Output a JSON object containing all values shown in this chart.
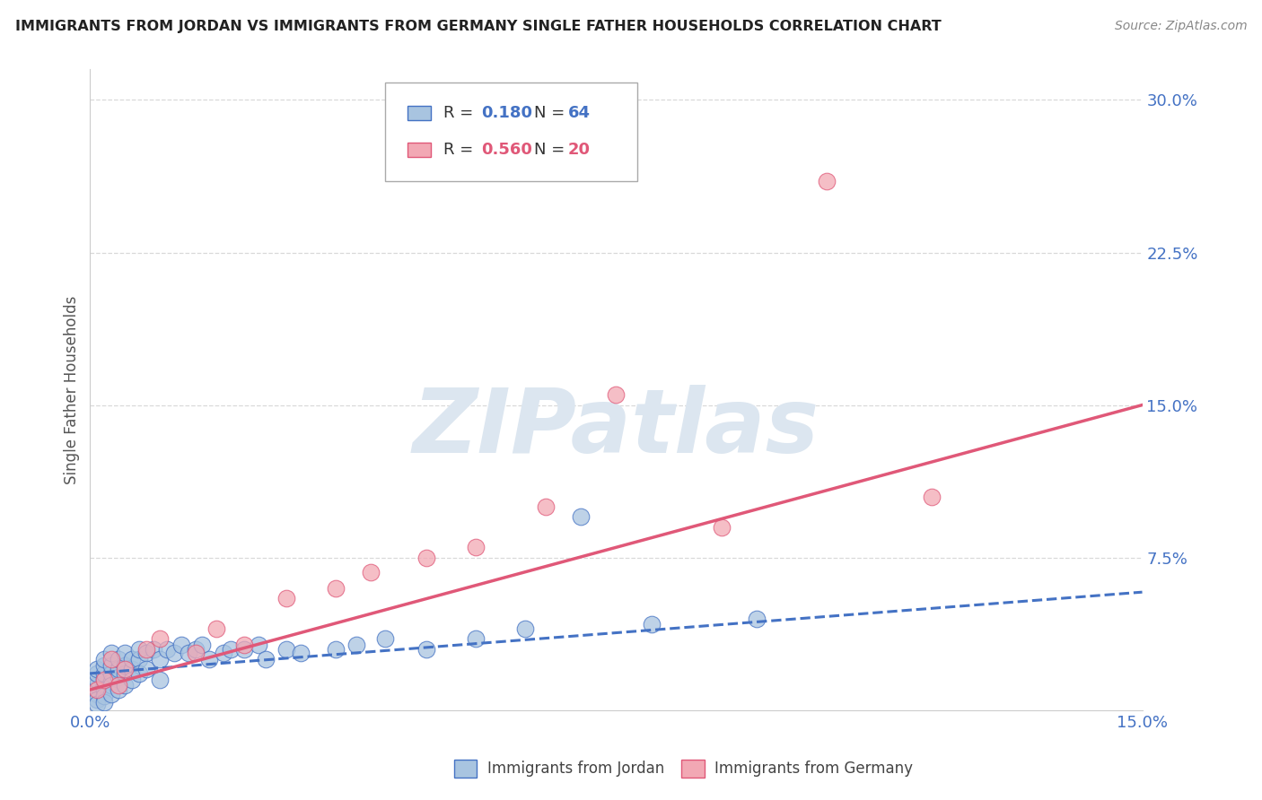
{
  "title": "IMMIGRANTS FROM JORDAN VS IMMIGRANTS FROM GERMANY SINGLE FATHER HOUSEHOLDS CORRELATION CHART",
  "source": "Source: ZipAtlas.com",
  "ylabel": "Single Father Households",
  "x_min": 0.0,
  "x_max": 0.15,
  "y_min": 0.0,
  "y_max": 0.315,
  "ytick_vals": [
    0.075,
    0.15,
    0.225,
    0.3
  ],
  "ytick_labels": [
    "7.5%",
    "15.0%",
    "22.5%",
    "30.0%"
  ],
  "xtick_vals": [
    0.0,
    0.15
  ],
  "xtick_labels": [
    "0.0%",
    "15.0%"
  ],
  "jordan_color": "#a8c4e0",
  "germany_color": "#f2a8b4",
  "jordan_R": 0.18,
  "jordan_N": 64,
  "germany_R": 0.56,
  "germany_N": 20,
  "jordan_label": "Immigrants from Jordan",
  "germany_label": "Immigrants from Germany",
  "jordan_line_color": "#4472c4",
  "germany_line_color": "#e05878",
  "r_n_color_jordan": "#4472c4",
  "r_n_color_germany": "#e05878",
  "watermark": "ZIPatlas",
  "watermark_color": "#dce6f0",
  "background_color": "#ffffff",
  "grid_color": "#d0d0d0",
  "title_color": "#222222",
  "ylabel_color": "#555555",
  "tick_label_color": "#4472c4",
  "jordan_x": [
    0.001,
    0.001,
    0.001,
    0.001,
    0.001,
    0.001,
    0.001,
    0.001,
    0.002,
    0.002,
    0.002,
    0.002,
    0.002,
    0.002,
    0.002,
    0.002,
    0.003,
    0.003,
    0.003,
    0.003,
    0.003,
    0.003,
    0.004,
    0.004,
    0.004,
    0.004,
    0.005,
    0.005,
    0.005,
    0.005,
    0.006,
    0.006,
    0.006,
    0.007,
    0.007,
    0.007,
    0.008,
    0.008,
    0.009,
    0.01,
    0.01,
    0.011,
    0.012,
    0.013,
    0.014,
    0.015,
    0.016,
    0.017,
    0.019,
    0.02,
    0.022,
    0.024,
    0.025,
    0.028,
    0.03,
    0.035,
    0.038,
    0.042,
    0.048,
    0.055,
    0.062,
    0.07,
    0.08,
    0.095
  ],
  "jordan_y": [
    0.01,
    0.012,
    0.015,
    0.018,
    0.02,
    0.008,
    0.005,
    0.003,
    0.012,
    0.015,
    0.018,
    0.022,
    0.025,
    0.01,
    0.007,
    0.004,
    0.014,
    0.018,
    0.022,
    0.028,
    0.012,
    0.008,
    0.016,
    0.02,
    0.025,
    0.01,
    0.018,
    0.022,
    0.028,
    0.012,
    0.02,
    0.025,
    0.015,
    0.025,
    0.03,
    0.018,
    0.028,
    0.02,
    0.03,
    0.025,
    0.015,
    0.03,
    0.028,
    0.032,
    0.028,
    0.03,
    0.032,
    0.025,
    0.028,
    0.03,
    0.03,
    0.032,
    0.025,
    0.03,
    0.028,
    0.03,
    0.032,
    0.035,
    0.03,
    0.035,
    0.04,
    0.095,
    0.042,
    0.045
  ],
  "germany_x": [
    0.001,
    0.002,
    0.003,
    0.004,
    0.005,
    0.008,
    0.01,
    0.015,
    0.018,
    0.022,
    0.028,
    0.035,
    0.04,
    0.048,
    0.055,
    0.065,
    0.075,
    0.09,
    0.105,
    0.12
  ],
  "germany_y": [
    0.01,
    0.015,
    0.025,
    0.012,
    0.02,
    0.03,
    0.035,
    0.028,
    0.04,
    0.032,
    0.055,
    0.06,
    0.068,
    0.075,
    0.08,
    0.1,
    0.155,
    0.09,
    0.26,
    0.105
  ],
  "jordan_trend_x": [
    0.0,
    0.15
  ],
  "jordan_trend_y_start": 0.018,
  "jordan_trend_y_end": 0.058,
  "germany_trend_x": [
    0.0,
    0.15
  ],
  "germany_trend_y_start": 0.01,
  "germany_trend_y_end": 0.15
}
